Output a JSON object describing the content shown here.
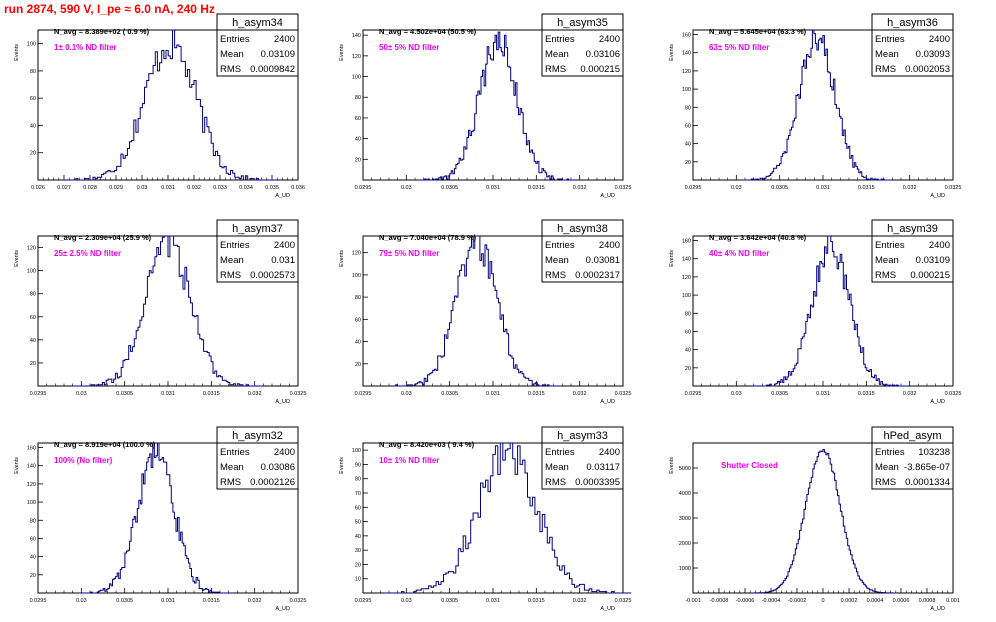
{
  "run_title": "run 2874,   590 V, I_pe ≈ 6.0 nA, 240 Hz",
  "stats_labels": {
    "entries": "Entries",
    "mean": "Mean",
    "rms": "RMS"
  },
  "y_axis_label": "Events",
  "x_axis_label": "A_UD",
  "chart_data": [
    {
      "type": "histogram",
      "name": "h_asym34",
      "navg": "N_avg = 8.389e+02 ( 0.9 %)",
      "filter": "1± 0.1% ND filter",
      "stats": {
        "entries": "2400",
        "mean": "0.03109",
        "rms": "0.0009842"
      },
      "xlim": [
        0.026,
        0.036
      ],
      "ylim": [
        0,
        110
      ],
      "x_ticks": [
        "0.026",
        "0.027",
        "0.028",
        "0.029",
        "0.03",
        "0.031",
        "0.032",
        "0.033",
        "0.034",
        "0.035",
        "0.036"
      ],
      "y_ticks": [
        "20",
        "40",
        "60",
        "80",
        "100"
      ],
      "mean": 0.03109,
      "sigma": 0.0009842,
      "peak": 100,
      "bins": 100
    },
    {
      "type": "histogram",
      "name": "h_asym35",
      "navg": "N_avg = 4.502e+04 (50.5 %)",
      "filter": "50± 5% ND filter",
      "stats": {
        "entries": "2400",
        "mean": "0.03106",
        "rms": "0.000215"
      },
      "xlim": [
        0.0295,
        0.0325
      ],
      "ylim": [
        0,
        145
      ],
      "x_ticks": [
        "0.0295",
        "0.03",
        "0.0305",
        "0.031",
        "0.0315",
        "0.032",
        "0.0325"
      ],
      "y_ticks": [
        "20",
        "40",
        "60",
        "80",
        "100",
        "120",
        "140"
      ],
      "mean": 0.03106,
      "sigma": 0.000215,
      "peak": 135,
      "bins": 100
    },
    {
      "type": "histogram",
      "name": "h_asym36",
      "navg": "N_avg = 5.645e+04 (63.3 %)",
      "filter": "63± 5% ND filter",
      "stats": {
        "entries": "2400",
        "mean": "0.03093",
        "rms": "0.0002053"
      },
      "xlim": [
        0.0295,
        0.0325
      ],
      "ylim": [
        0,
        165
      ],
      "x_ticks": [
        "0.0295",
        "0.03",
        "0.0305",
        "0.031",
        "0.0315",
        "0.032",
        "0.0325"
      ],
      "y_ticks": [
        "20",
        "40",
        "60",
        "80",
        "100",
        "120",
        "140",
        "160"
      ],
      "mean": 0.03093,
      "sigma": 0.0002053,
      "peak": 158,
      "bins": 100
    },
    {
      "type": "histogram",
      "name": "h_asym37",
      "navg": "N_avg = 2.309e+04 (25.9 %)",
      "filter": "25± 2.5% ND filter",
      "stats": {
        "entries": "2400",
        "mean": "0.031",
        "rms": "0.0002573"
      },
      "xlim": [
        0.0295,
        0.0325
      ],
      "ylim": [
        0,
        130
      ],
      "x_ticks": [
        "0.0295",
        "0.03",
        "0.0305",
        "0.031",
        "0.0315",
        "0.032",
        "0.0325"
      ],
      "y_ticks": [
        "20",
        "40",
        "60",
        "80",
        "100",
        "120"
      ],
      "mean": 0.031,
      "sigma": 0.0002573,
      "peak": 125,
      "bins": 100
    },
    {
      "type": "histogram",
      "name": "h_asym38",
      "navg": "N_avg = 7.040e+04 (78.9 %)",
      "filter": "79± 5% ND filter",
      "stats": {
        "entries": "2400",
        "mean": "0.03081",
        "rms": "0.0002317"
      },
      "xlim": [
        0.0295,
        0.0325
      ],
      "ylim": [
        0,
        135
      ],
      "x_ticks": [
        "0.0295",
        "0.03",
        "0.0305",
        "0.031",
        "0.0315",
        "0.032",
        "0.0325"
      ],
      "y_ticks": [
        "20",
        "40",
        "60",
        "80",
        "100",
        "120"
      ],
      "mean": 0.03081,
      "sigma": 0.0002317,
      "peak": 130,
      "bins": 100
    },
    {
      "type": "histogram",
      "name": "h_asym39",
      "navg": "N_avg = 3.642e+04 (40.8 %)",
      "filter": "40± 4% ND filter",
      "stats": {
        "entries": "2400",
        "mean": "0.03109",
        "rms": "0.000215"
      },
      "xlim": [
        0.0295,
        0.0325
      ],
      "ylim": [
        0,
        165
      ],
      "x_ticks": [
        "0.0295",
        "0.03",
        "0.0305",
        "0.031",
        "0.0315",
        "0.032",
        "0.0325"
      ],
      "y_ticks": [
        "20",
        "40",
        "60",
        "80",
        "100",
        "120",
        "140",
        "160"
      ],
      "mean": 0.03109,
      "sigma": 0.000215,
      "peak": 155,
      "bins": 100
    },
    {
      "type": "histogram",
      "name": "h_asym32",
      "navg": "N_avg = 8.919e+04 (100.0 %)",
      "filter": "100% (No filter)",
      "stats": {
        "entries": "2400",
        "mean": "0.03086",
        "rms": "0.0002126"
      },
      "xlim": [
        0.0295,
        0.0325
      ],
      "ylim": [
        0,
        165
      ],
      "x_ticks": [
        "0.0295",
        "0.03",
        "0.0305",
        "0.031",
        "0.0315",
        "0.032",
        "0.0325"
      ],
      "y_ticks": [
        "20",
        "40",
        "60",
        "80",
        "100",
        "120",
        "140",
        "160"
      ],
      "mean": 0.03086,
      "sigma": 0.0002126,
      "peak": 152,
      "bins": 100
    },
    {
      "type": "histogram",
      "name": "h_asym33",
      "navg": "N_avg = 8.420e+03 ( 9.4 %)",
      "filter": "10± 1% ND filter",
      "stats": {
        "entries": "2400",
        "mean": "0.03117",
        "rms": "0.0003395"
      },
      "xlim": [
        0.0295,
        0.0325
      ],
      "ylim": [
        0,
        105
      ],
      "x_ticks": [
        "0.0295",
        "0.03",
        "0.0305",
        "0.031",
        "0.0315",
        "0.032",
        "0.0325"
      ],
      "y_ticks": [
        "10",
        "20",
        "30",
        "40",
        "50",
        "60",
        "70",
        "80",
        "90",
        "100"
      ],
      "mean": 0.03117,
      "sigma": 0.0003395,
      "peak": 98,
      "bins": 100
    },
    {
      "type": "histogram",
      "name": "hPed_asym",
      "navg": "",
      "filter": "Shutter Closed",
      "stats": {
        "entries": "103238",
        "mean": "-3.865e-07",
        "rms": "0.0001334"
      },
      "xlim": [
        -0.001,
        0.001
      ],
      "ylim": [
        0,
        6000
      ],
      "x_ticks": [
        "-0.001",
        "-0.0008",
        "-0.0006",
        "-0.0004",
        "-0.0002",
        "0",
        "0.0002",
        "0.0004",
        "0.0006",
        "0.0008",
        "0.001"
      ],
      "y_ticks": [
        "1000",
        "2000",
        "3000",
        "4000",
        "5000"
      ],
      "mean": -3.865e-07,
      "sigma": 0.0001334,
      "peak": 5750,
      "bins": 100
    }
  ]
}
